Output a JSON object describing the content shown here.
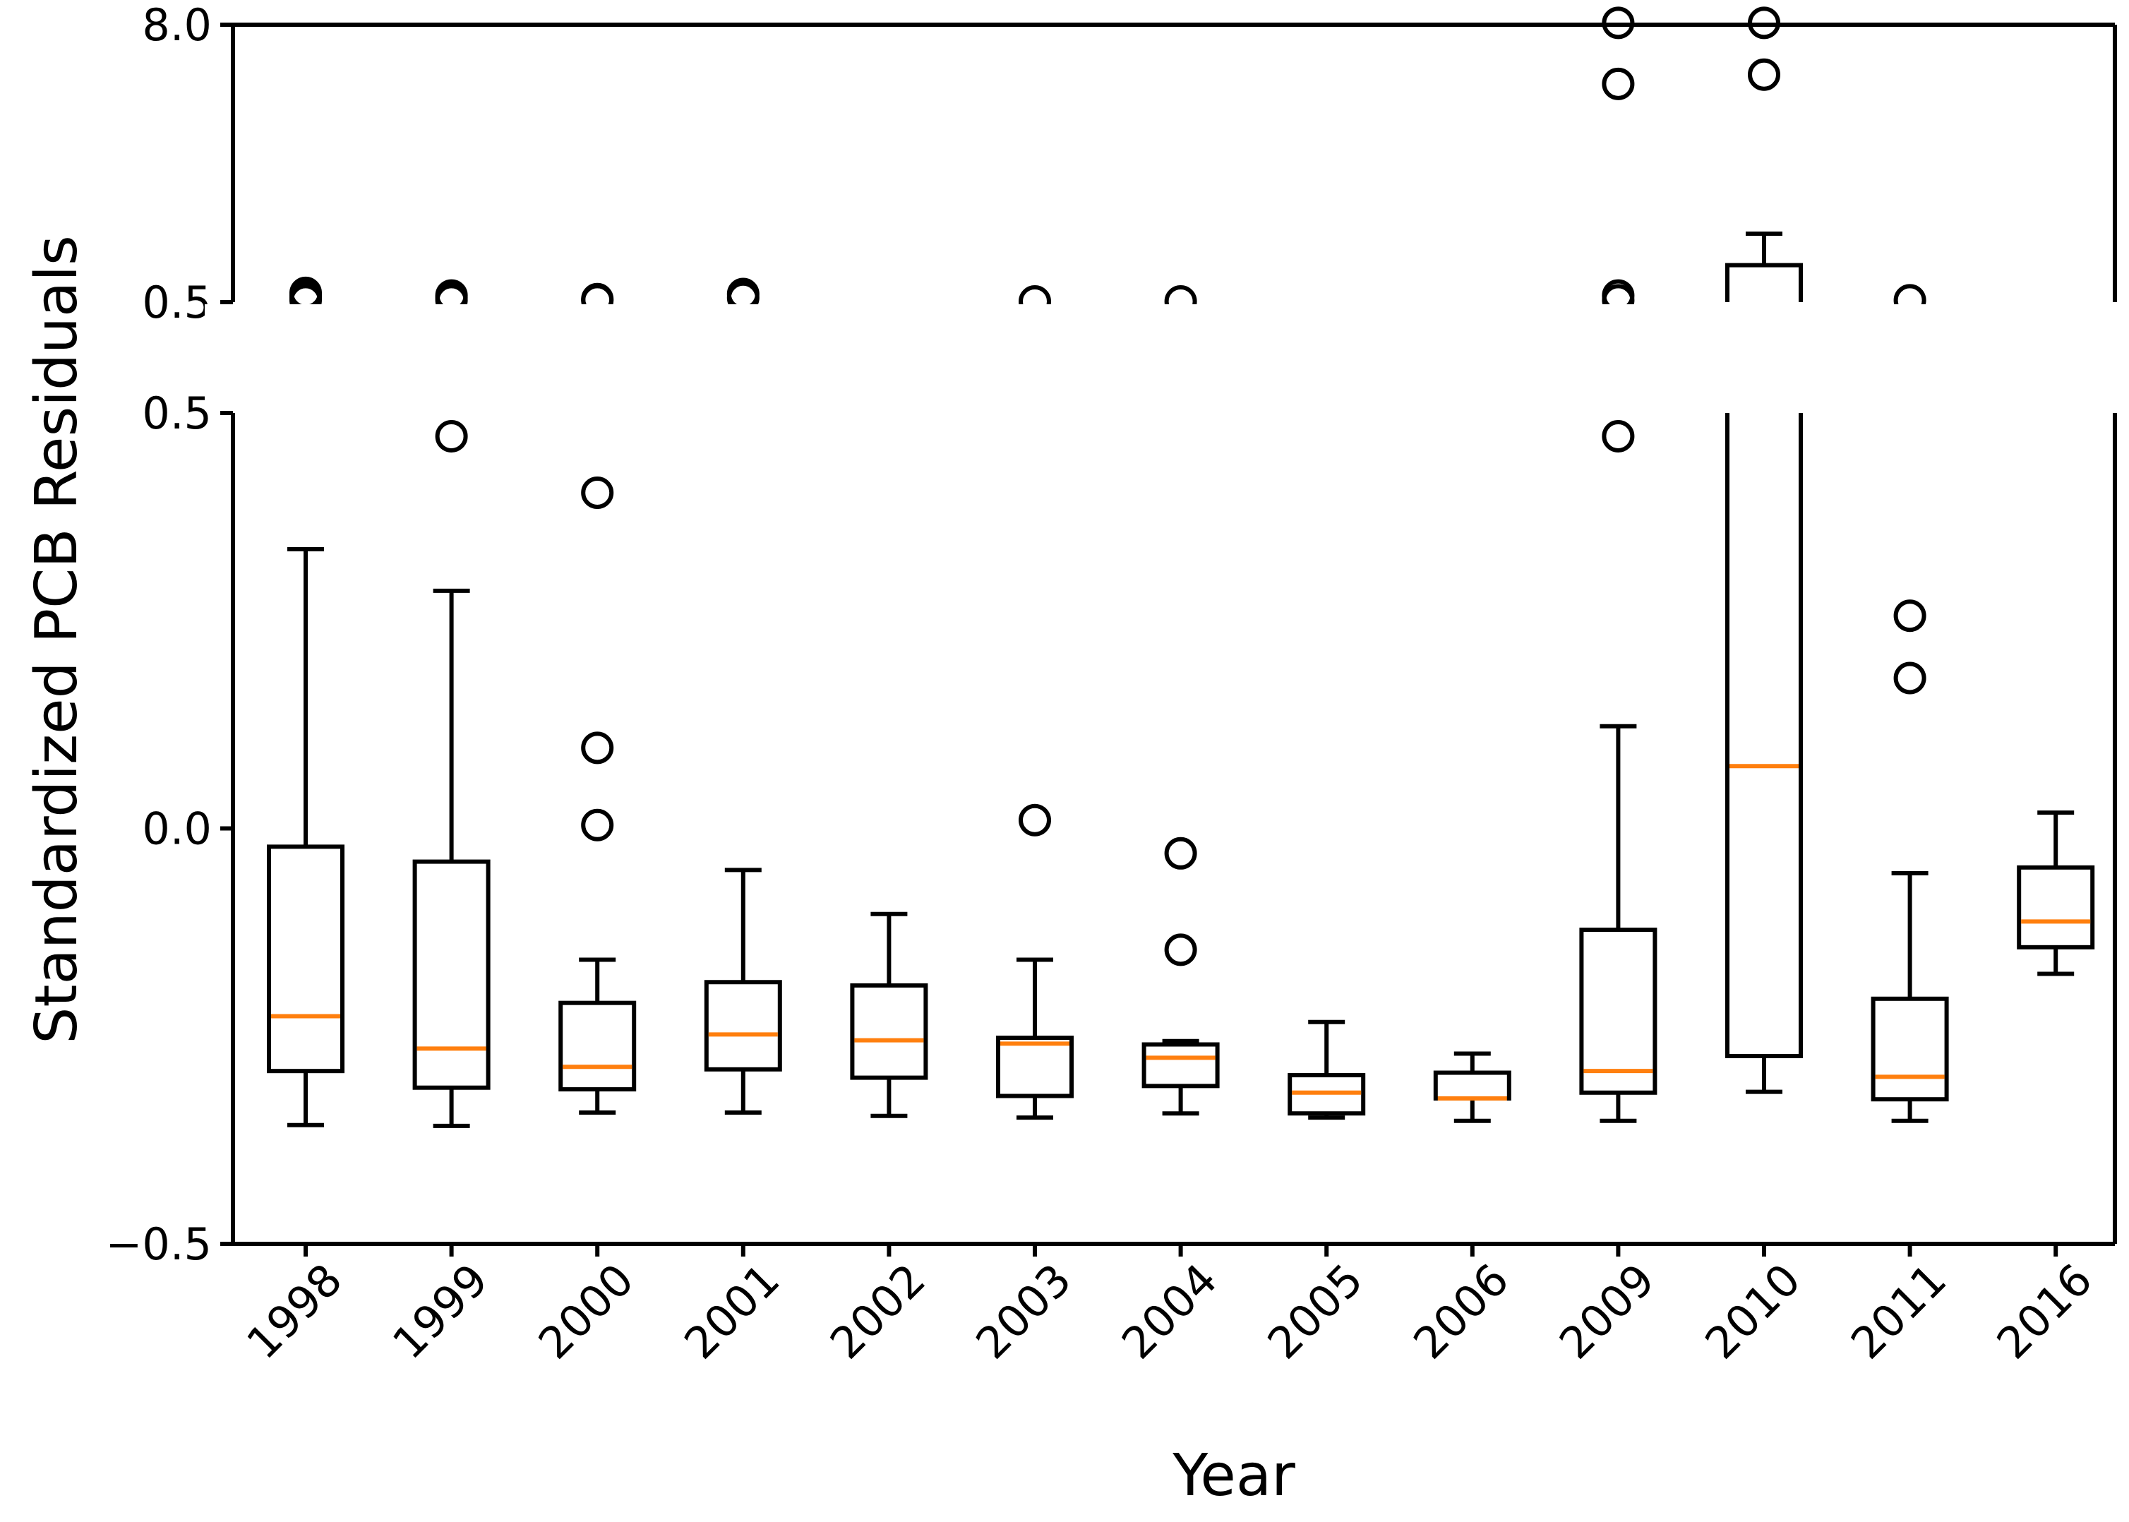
{
  "chart_data": {
    "type": "box",
    "title": "",
    "xlabel": "Year",
    "ylabel": "Standardized PCB Residuals",
    "categories": [
      "1998",
      "1999",
      "2000",
      "2001",
      "2002",
      "2003",
      "2004",
      "2005",
      "2006",
      "2009",
      "2010",
      "2011",
      "2016"
    ],
    "broken_axis": {
      "upper": {
        "ylim": [
          0.5,
          8.0
        ],
        "ticks": [
          0.5,
          8.0
        ],
        "tick_labels": [
          "0.5",
          "8.0"
        ]
      },
      "lower": {
        "ylim": [
          -0.5,
          0.5
        ],
        "ticks": [
          -0.5,
          0.0,
          0.5
        ],
        "tick_labels": [
          "−0.5",
          "0.0",
          "0.5"
        ]
      }
    },
    "boxes": [
      {
        "category": "1998",
        "whislo": -0.357,
        "q1": -0.292,
        "med": -0.226,
        "q3": -0.022,
        "whishi": 0.336,
        "outliers": []
      },
      {
        "category": "1999",
        "whislo": -0.358,
        "q1": -0.312,
        "med": -0.265,
        "q3": -0.04,
        "whishi": 0.286,
        "outliers": [
          0.472
        ]
      },
      {
        "category": "2000",
        "whislo": -0.342,
        "q1": -0.314,
        "med": -0.287,
        "q3": -0.21,
        "whishi": -0.158,
        "outliers": [
          0.404,
          0.097,
          0.004
        ]
      },
      {
        "category": "2001",
        "whislo": -0.342,
        "q1": -0.29,
        "med": -0.248,
        "q3": -0.185,
        "whishi": -0.05,
        "outliers": []
      },
      {
        "category": "2002",
        "whislo": -0.346,
        "q1": -0.3,
        "med": -0.255,
        "q3": -0.189,
        "whishi": -0.103,
        "outliers": []
      },
      {
        "category": "2003",
        "whislo": -0.348,
        "q1": -0.322,
        "med": -0.259,
        "q3": -0.252,
        "whishi": -0.158,
        "outliers": [
          0.01
        ]
      },
      {
        "category": "2004",
        "whislo": -0.343,
        "q1": -0.31,
        "med": -0.276,
        "q3": -0.26,
        "whishi": -0.256,
        "outliers": [
          -0.03,
          -0.146
        ]
      },
      {
        "category": "2005",
        "whislo": -0.348,
        "q1": -0.343,
        "med": -0.318,
        "q3": -0.297,
        "whishi": -0.233,
        "outliers": []
      },
      {
        "category": "2006",
        "whislo": -0.352,
        "q1": -0.325,
        "med": -0.325,
        "q3": -0.294,
        "whishi": -0.271,
        "outliers": []
      },
      {
        "category": "2009",
        "whislo": -0.352,
        "q1": -0.318,
        "med": -0.292,
        "q3": -0.122,
        "whishi": 0.123,
        "outliers": [
          0.472
        ]
      },
      {
        "category": "2010",
        "whislo": -0.317,
        "q1": -0.274,
        "med": 0.075,
        "q3": 0.5,
        "whishi": 0.5,
        "outliers": []
      },
      {
        "category": "2011",
        "whislo": -0.352,
        "q1": -0.326,
        "med": -0.299,
        "q3": -0.205,
        "whishi": -0.054,
        "outliers": [
          0.256,
          0.181
        ]
      },
      {
        "category": "2016",
        "whislo": -0.175,
        "q1": -0.143,
        "med": -0.112,
        "q3": -0.047,
        "whishi": 0.019,
        "outliers": []
      }
    ],
    "upper_segment_elements": [
      {
        "category": "1998",
        "outliers": [
          0.55,
          0.62,
          0.68,
          0.75
        ],
        "box_top": null,
        "whishi": null
      },
      {
        "category": "1999",
        "outliers": [
          0.55,
          0.62,
          0.68
        ],
        "box_top": null,
        "whishi": null
      },
      {
        "category": "2000",
        "outliers": [
          0.55,
          0.58
        ],
        "box_top": null,
        "whishi": null
      },
      {
        "category": "2001",
        "outliers": [
          0.62,
          0.72
        ],
        "box_top": null,
        "whishi": null
      },
      {
        "category": "2003",
        "outliers": [
          0.52
        ],
        "box_top": null,
        "whishi": null
      },
      {
        "category": "2004",
        "outliers": [
          0.52
        ],
        "box_top": null,
        "whishi": null
      },
      {
        "category": "2009",
        "outliers": [
          8.05,
          6.4,
          0.68,
          0.55
        ],
        "box_top": null,
        "whishi": null
      },
      {
        "category": "2010",
        "outliers": [
          8.05,
          6.65
        ],
        "box_top": 1.5,
        "whishi": 2.35
      },
      {
        "category": "2011",
        "outliers": [
          0.55
        ],
        "box_top": null,
        "whishi": null
      }
    ],
    "colors": {
      "box": "#000000",
      "median": "#ff7f0e",
      "background": "#ffffff"
    }
  }
}
